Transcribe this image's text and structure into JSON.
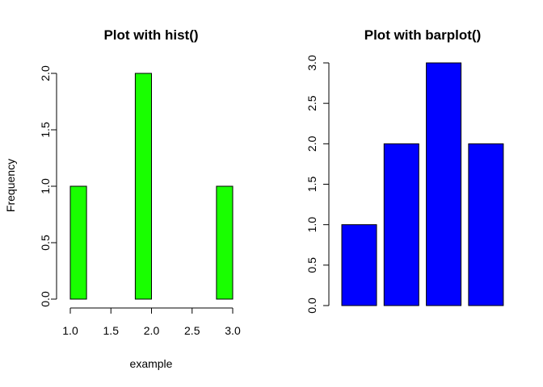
{
  "chart_data": [
    {
      "type": "bar",
      "title": "Plot with hist()",
      "xlabel": "example",
      "ylabel": "Frequency",
      "bins": [
        {
          "from": 1.0,
          "to": 1.2,
          "count": 1
        },
        {
          "from": 1.2,
          "to": 1.4,
          "count": 0
        },
        {
          "from": 1.4,
          "to": 1.6,
          "count": 0
        },
        {
          "from": 1.6,
          "to": 1.8,
          "count": 0
        },
        {
          "from": 1.8,
          "to": 2.0,
          "count": 2
        },
        {
          "from": 2.0,
          "to": 2.2,
          "count": 0
        },
        {
          "from": 2.2,
          "to": 2.4,
          "count": 0
        },
        {
          "from": 2.4,
          "to": 2.6,
          "count": 0
        },
        {
          "from": 2.6,
          "to": 2.8,
          "count": 0
        },
        {
          "from": 2.8,
          "to": 3.0,
          "count": 1
        }
      ],
      "x_ticks": [
        "1.0",
        "1.5",
        "2.0",
        "2.5",
        "3.0"
      ],
      "y_ticks": [
        "0.0",
        "0.5",
        "1.0",
        "1.5",
        "2.0"
      ],
      "xlim": [
        1.0,
        3.0
      ],
      "ylim": [
        0,
        2.0
      ],
      "bar_color": "#19ff00",
      "grid": false
    },
    {
      "type": "bar",
      "title": "Plot with barplot()",
      "values": [
        1,
        2,
        3,
        2
      ],
      "y_ticks": [
        "0.0",
        "0.5",
        "1.0",
        "1.5",
        "2.0",
        "2.5",
        "3.0"
      ],
      "ylim": [
        0,
        3.0
      ],
      "bar_color": "#0000ff",
      "grid": false
    }
  ]
}
